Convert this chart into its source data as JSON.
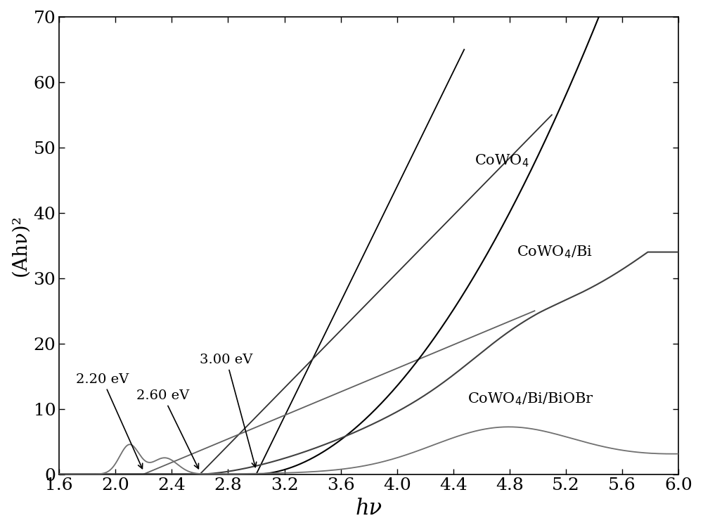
{
  "xlim": [
    1.6,
    6.0
  ],
  "ylim": [
    0,
    70
  ],
  "xlabel": "hν",
  "ylabel": "(Ahν)²",
  "xlabel_fontsize": 22,
  "ylabel_fontsize": 20,
  "tick_fontsize": 18,
  "background_color": "#ffffff",
  "x_ticks": [
    1.6,
    2.0,
    2.4,
    2.8,
    3.2,
    3.6,
    4.0,
    4.4,
    4.8,
    5.2,
    5.6,
    6.0
  ],
  "y_ticks": [
    0,
    10,
    20,
    30,
    40,
    50,
    60,
    70
  ]
}
